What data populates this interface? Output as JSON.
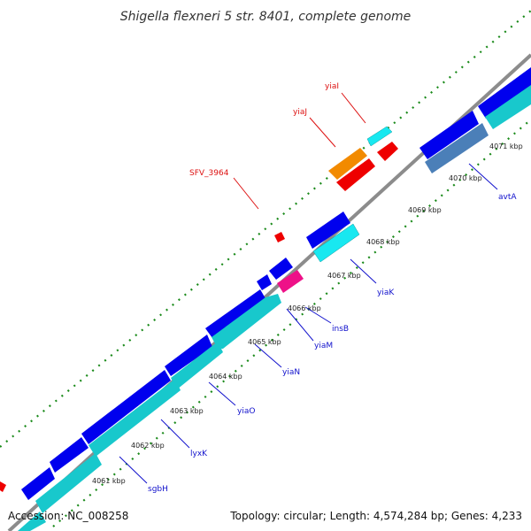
{
  "title": "Shigella flexneri 5 str. 8401, complete genome",
  "footer": {
    "accession": "Accession: NC_008258",
    "summary": "Topology: circular; Length: 4,574,284 bp; Genes: 4,233"
  },
  "colors": {
    "backbone": "#8c8c8c",
    "cds_forward": "#0000ee",
    "cds_reverse_cyan": "#18d6dc",
    "rna_or_other": "#ee0000",
    "orange": "#f28a00",
    "magenta": "#ee1188",
    "steel_blue": "#4b7fb8",
    "tick_green": "#1a8a1a",
    "forward_label": "#dd1111",
    "reverse_label": "#1111cc"
  },
  "kbp_labels": [
    "4061 kbp",
    "4062 kbp",
    "4063 kbp",
    "4064 kbp",
    "4065 kbp",
    "4066 kbp",
    "4067 kbp",
    "4068 kbp",
    "4069 kbp",
    "4070 kbp",
    "4071 kbp"
  ],
  "forward_labels": [
    "yiaI",
    "yiaJ",
    "SFV_3964"
  ],
  "reverse_labels": [
    "avtA",
    "yiaK",
    "insB",
    "yiaM",
    "yiaN",
    "yiaO",
    "lyxK",
    "sgbH"
  ]
}
